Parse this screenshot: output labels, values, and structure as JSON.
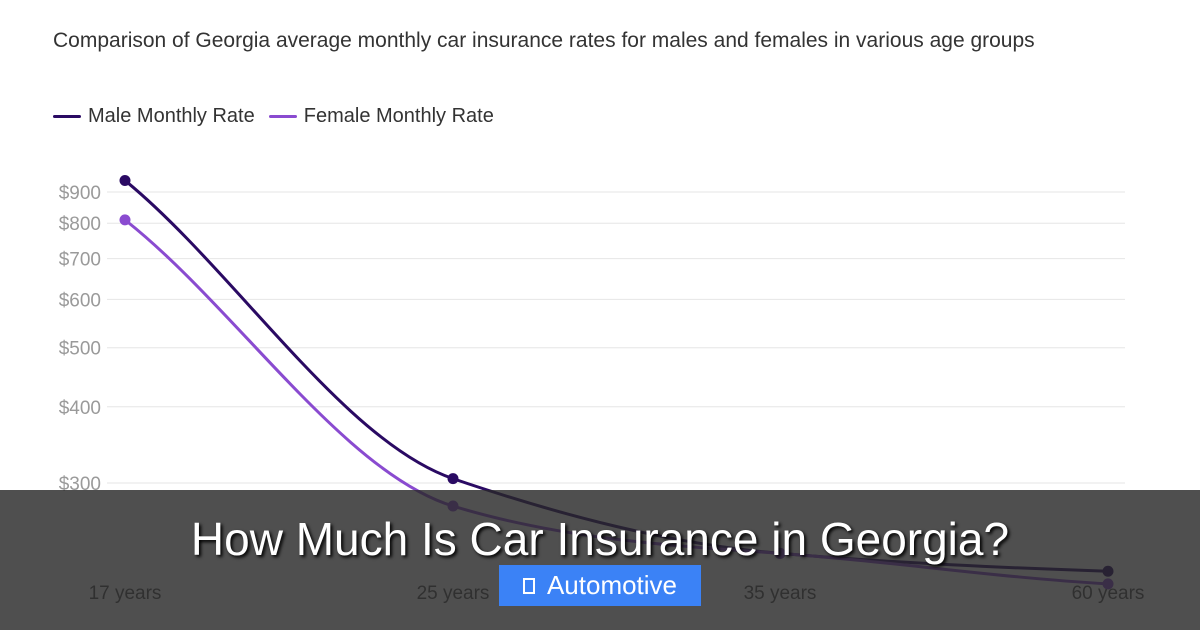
{
  "header": {
    "subtitle": "Comparison of Georgia average monthly car insurance rates for males and females in various age groups"
  },
  "colors": {
    "male": "#2a0a63",
    "female": "#8a4bd0",
    "grid": "#e6e6e6",
    "tick": "#9a9a9a"
  },
  "chart_data": {
    "type": "line",
    "categories": [
      "17 years",
      "25 years",
      "35 years",
      "60 years"
    ],
    "series": [
      {
        "name": "Male Monthly Rate",
        "values": [
          940,
          305,
          230,
          215
        ]
      },
      {
        "name": "Female Monthly Rate",
        "values": [
          810,
          275,
          230,
          205
        ]
      }
    ],
    "y_ticks": [
      "$300",
      "$400",
      "$500",
      "$600",
      "$700",
      "$800",
      "$900"
    ],
    "legend": "top-left",
    "grid": true
  },
  "overlay": {
    "title": "How Much Is Car Insurance in Georgia?",
    "category_label": "Automotive",
    "category_icon": "folder-icon"
  }
}
